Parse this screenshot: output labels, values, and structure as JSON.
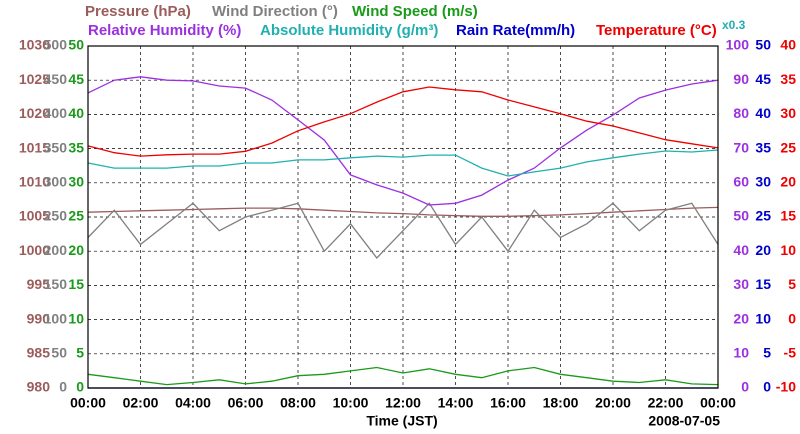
{
  "chart_data": {
    "type": "line",
    "x": [
      "00:00",
      "01:00",
      "02:00",
      "03:00",
      "04:00",
      "05:00",
      "06:00",
      "07:00",
      "08:00",
      "09:00",
      "10:00",
      "11:00",
      "12:00",
      "13:00",
      "14:00",
      "15:00",
      "16:00",
      "17:00",
      "18:00",
      "19:00",
      "20:00",
      "21:00",
      "22:00",
      "23:00",
      "00:00"
    ],
    "xticks": [
      0,
      2,
      4,
      6,
      8,
      10,
      12,
      14,
      16,
      18,
      20,
      22,
      24
    ],
    "xticklabels": [
      "00:00",
      "02:00",
      "04:00",
      "06:00",
      "08:00",
      "10:00",
      "12:00",
      "14:00",
      "16:00",
      "18:00",
      "20:00",
      "22:00",
      "00:00"
    ],
    "xhours": [
      0,
      1,
      2,
      3,
      4,
      5,
      6,
      7,
      8,
      9,
      10,
      11,
      12,
      13,
      14,
      15,
      16,
      17,
      18,
      19,
      20,
      21,
      22,
      23,
      24
    ],
    "xlim": [
      0,
      24
    ],
    "xlabel": "Time (JST)",
    "date": "2008-07-05",
    "annotation": "x0.3",
    "grid": true,
    "axes": [
      {
        "color": "#9b5c5c",
        "ylim": [
          980,
          1030
        ],
        "yticks": [
          980,
          985,
          990,
          995,
          1000,
          1005,
          1010,
          1015,
          1020,
          1025,
          1030
        ]
      },
      {
        "color": "#808080",
        "ylim": [
          0,
          500
        ],
        "yticks": [
          0,
          50,
          100,
          150,
          200,
          250,
          300,
          350,
          400,
          450,
          500
        ]
      },
      {
        "color": "#1a9a1a",
        "ylim": [
          0,
          50
        ],
        "yticks": [
          0,
          5,
          10,
          15,
          20,
          25,
          30,
          35,
          40,
          45,
          50
        ]
      },
      {
        "color": "#9b30e0",
        "ylim": [
          0,
          100
        ],
        "yticks": [
          0,
          10,
          20,
          30,
          40,
          50,
          60,
          70,
          80,
          90,
          100
        ]
      },
      {
        "color": "#0000cc",
        "ylim": [
          0,
          50
        ],
        "yticks": [
          0,
          5,
          10,
          15,
          20,
          25,
          30,
          35,
          40,
          45,
          50
        ]
      },
      {
        "color": "#ee0000",
        "ylim": [
          -10,
          40
        ],
        "yticks": [
          -10,
          -5,
          0,
          5,
          10,
          15,
          20,
          25,
          30,
          35,
          40
        ]
      }
    ],
    "series": [
      {
        "name": "Pressure (hPa)",
        "color": "#9b5c5c",
        "axis": 0,
        "values": [
          1005.7,
          1005.8,
          1005.9,
          1006.0,
          1006.1,
          1006.2,
          1006.3,
          1006.3,
          1006.2,
          1006.0,
          1005.8,
          1005.6,
          1005.5,
          1005.3,
          1005.2,
          1005.1,
          1005.1,
          1005.2,
          1005.3,
          1005.5,
          1005.7,
          1005.9,
          1006.1,
          1006.3,
          1006.4
        ]
      },
      {
        "name": "Wind Direction (°)",
        "color": "#808080",
        "axis": 1,
        "values": [
          220,
          260,
          210,
          240,
          270,
          230,
          250,
          260,
          270,
          200,
          240,
          190,
          230,
          270,
          210,
          250,
          200,
          260,
          220,
          240,
          270,
          230,
          260,
          270,
          210
        ]
      },
      {
        "name": "Wind Speed (m/s)",
        "color": "#1a9a1a",
        "axis": 2,
        "values": [
          2,
          1.5,
          1,
          0.5,
          0.8,
          1.2,
          0.6,
          1,
          1.8,
          2,
          2.5,
          3,
          2.2,
          2.8,
          2,
          1.5,
          2.5,
          3,
          2,
          1.5,
          1,
          0.8,
          1.2,
          0.6,
          0.5
        ]
      },
      {
        "name": "Relative Humidity (%)",
        "color": "#9b30e0",
        "axis": 3,
        "values": [
          86.3,
          90,
          91,
          90,
          89.8,
          88.3,
          87.7,
          84.2,
          78.4,
          72.5,
          62.3,
          59.4,
          57,
          53.5,
          54,
          56.4,
          60.8,
          64.3,
          70.2,
          75.4,
          79.8,
          84.8,
          87.1,
          88.9,
          90
        ]
      },
      {
        "name": "Absolute Humidity (g/m³)",
        "color": "#20b0b0",
        "axis": 3,
        "values": [
          65.8,
          64.3,
          64.3,
          64.3,
          64.9,
          64.9,
          65.8,
          65.8,
          66.7,
          66.7,
          67.3,
          67.8,
          67.5,
          68.1,
          68.1,
          64.3,
          62,
          63.2,
          64.3,
          66.1,
          67.3,
          68.4,
          69.3,
          69,
          69.6
        ]
      },
      {
        "name": "Rain Rate(mm/h)",
        "color": "#0000cc",
        "axis": 4,
        "values": [
          0,
          0,
          0,
          0,
          0,
          0,
          0,
          0,
          0,
          0,
          0,
          0,
          0,
          0,
          0,
          0,
          0,
          0,
          0,
          0,
          0,
          0,
          0,
          0,
          0
        ]
      },
      {
        "name": "Temperature (°C)",
        "color": "#ee0000",
        "axis": 5,
        "values": [
          25.4,
          24.4,
          23.9,
          24.1,
          24.2,
          24.2,
          24.6,
          25.8,
          27.6,
          28.9,
          30.1,
          31.8,
          33.3,
          34,
          33.6,
          33.3,
          32.1,
          31.1,
          30.1,
          29,
          28.3,
          27.3,
          26.3,
          25.7,
          25.1
        ]
      }
    ]
  }
}
